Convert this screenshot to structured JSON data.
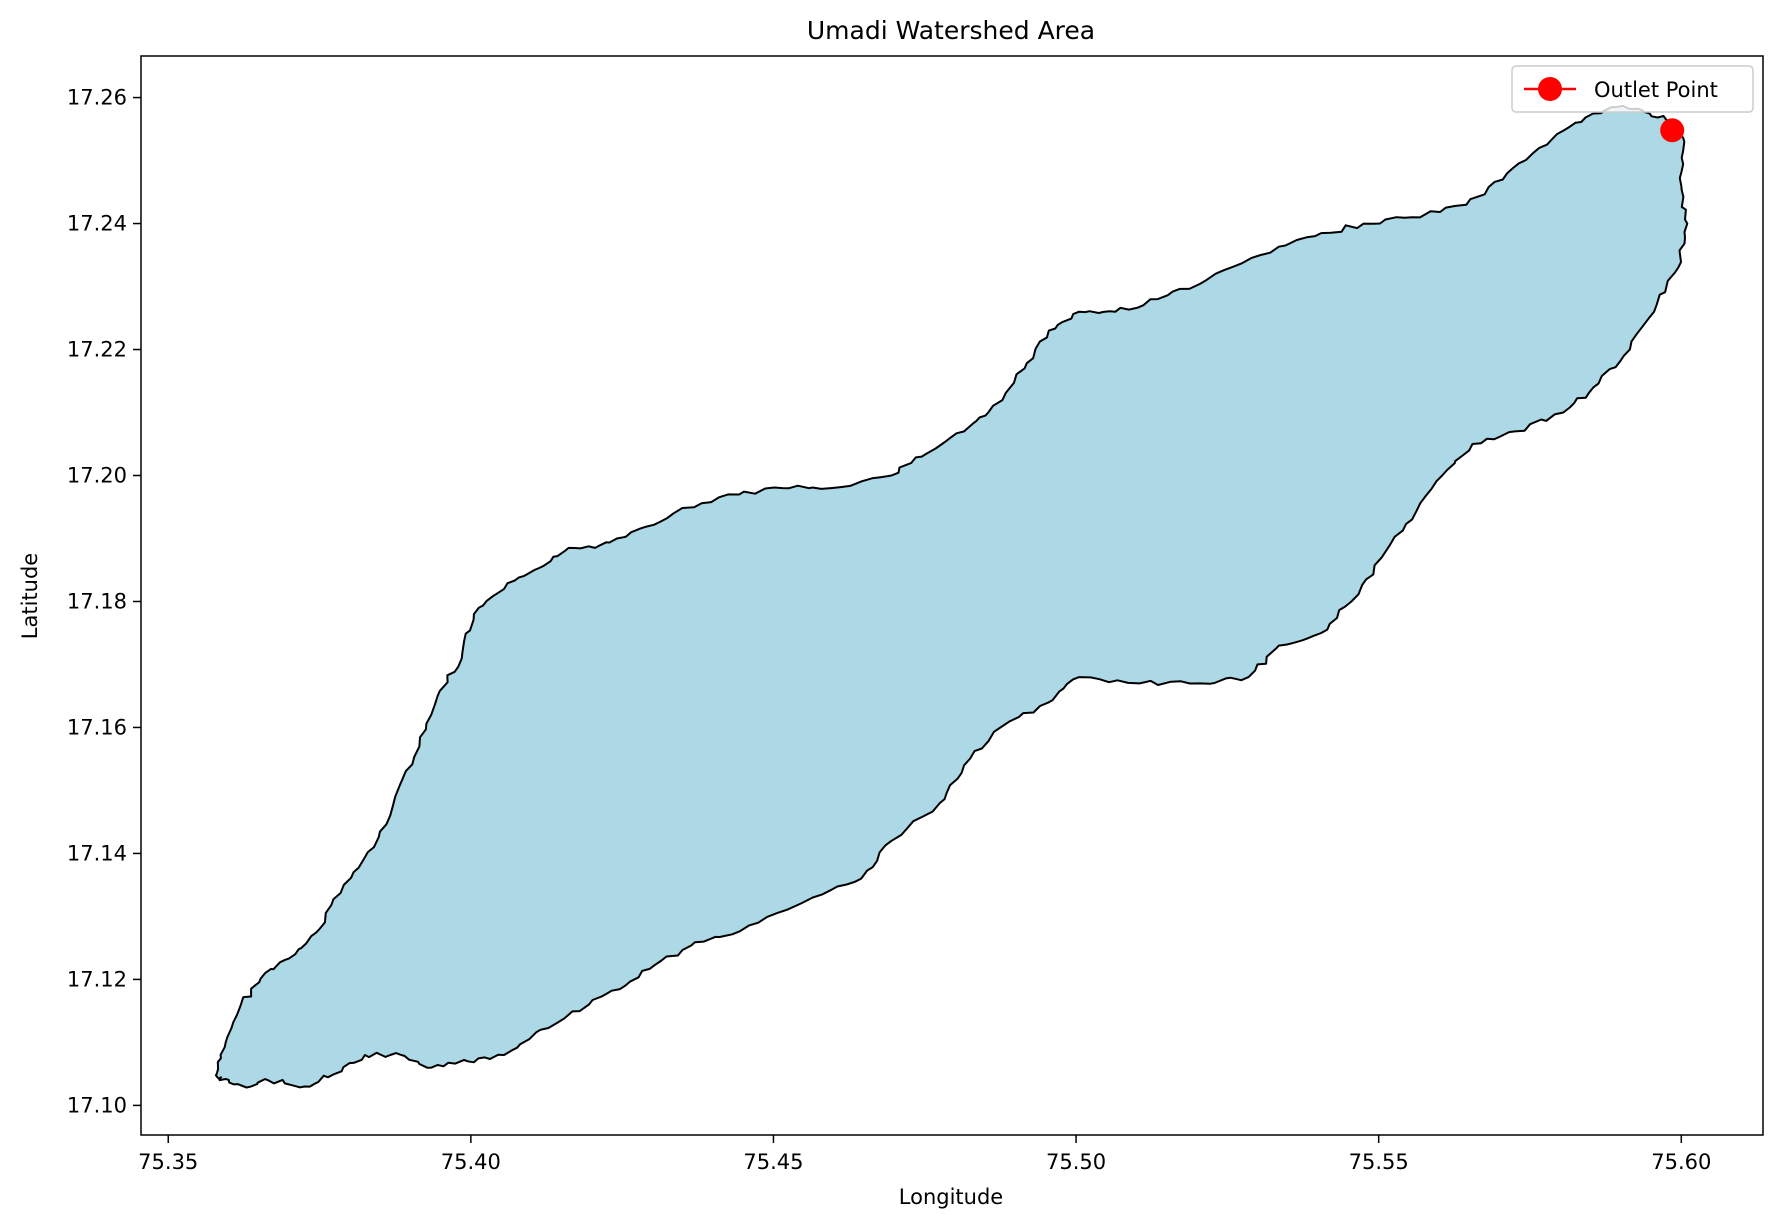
{
  "chart_data": {
    "type": "map",
    "title": "Umadi Watershed Area",
    "xlabel": "Longitude",
    "ylabel": "Latitude",
    "xlim": [
      75.3455,
      75.6135
    ],
    "ylim": [
      17.0953,
      17.2666
    ],
    "xticks": [
      75.35,
      75.4,
      75.45,
      75.5,
      75.55,
      75.6
    ],
    "xtick_labels": [
      "75.35",
      "75.40",
      "75.45",
      "75.50",
      "75.55",
      "75.60"
    ],
    "yticks": [
      17.1,
      17.12,
      17.14,
      17.16,
      17.18,
      17.2,
      17.22,
      17.24,
      17.26
    ],
    "ytick_labels": [
      "17.10",
      "17.12",
      "17.14",
      "17.16",
      "17.18",
      "17.20",
      "17.22",
      "17.24",
      "17.26"
    ],
    "grid": false,
    "legend_position": "upper-right",
    "watershed": {
      "fill_color": "#add8e6",
      "edge_color": "#000000",
      "boundary": [
        [
          75.358,
          17.105
        ],
        [
          75.3595,
          17.11
        ],
        [
          75.362,
          17.116
        ],
        [
          75.366,
          17.121
        ],
        [
          75.371,
          17.124
        ],
        [
          75.375,
          17.128
        ],
        [
          75.379,
          17.135
        ],
        [
          75.384,
          17.141
        ],
        [
          75.3875,
          17.149
        ],
        [
          75.3915,
          17.157
        ],
        [
          75.3945,
          17.165
        ],
        [
          75.3985,
          17.171
        ],
        [
          75.4005,
          17.178
        ],
        [
          75.4055,
          17.182
        ],
        [
          75.4105,
          17.185
        ],
        [
          75.4155,
          17.188
        ],
        [
          75.4215,
          17.189
        ],
        [
          75.4265,
          17.191
        ],
        [
          75.4335,
          17.194
        ],
        [
          75.4425,
          17.197
        ],
        [
          75.4515,
          17.198
        ],
        [
          75.4595,
          17.198
        ],
        [
          75.4695,
          17.2
        ],
        [
          75.4745,
          17.203
        ],
        [
          75.4815,
          17.207
        ],
        [
          75.4855,
          17.21
        ],
        [
          75.4915,
          17.217
        ],
        [
          75.4955,
          17.223
        ],
        [
          75.5005,
          17.226
        ],
        [
          75.5065,
          17.226
        ],
        [
          75.5135,
          17.228
        ],
        [
          75.5215,
          17.231
        ],
        [
          75.5305,
          17.235
        ],
        [
          75.5395,
          17.238
        ],
        [
          75.5475,
          17.24
        ],
        [
          75.5555,
          17.241
        ],
        [
          75.5645,
          17.243
        ],
        [
          75.5705,
          17.247
        ],
        [
          75.5765,
          17.252
        ],
        [
          75.5825,
          17.256
        ],
        [
          75.5885,
          17.2585
        ],
        [
          75.5935,
          17.258
        ],
        [
          75.5975,
          17.2565
        ],
        [
          75.6005,
          17.253
        ],
        [
          75.6,
          17.246
        ],
        [
          75.601,
          17.24
        ],
        [
          75.5995,
          17.233
        ],
        [
          75.5955,
          17.226
        ],
        [
          75.5905,
          17.219
        ],
        [
          75.5855,
          17.214
        ],
        [
          75.5805,
          17.21
        ],
        [
          75.5725,
          17.207
        ],
        [
          75.5655,
          17.205
        ],
        [
          75.5605,
          17.2
        ],
        [
          75.5555,
          17.193
        ],
        [
          75.5505,
          17.187
        ],
        [
          75.5455,
          17.18
        ],
        [
          75.5405,
          17.175
        ],
        [
          75.5335,
          17.173
        ],
        [
          75.5285,
          17.168
        ],
        [
          75.5205,
          17.167
        ],
        [
          75.5105,
          17.167
        ],
        [
          75.5005,
          17.168
        ],
        [
          75.4955,
          17.164
        ],
        [
          75.4875,
          17.16
        ],
        [
          75.4815,
          17.154
        ],
        [
          75.4775,
          17.148
        ],
        [
          75.4695,
          17.142
        ],
        [
          75.4645,
          17.136
        ],
        [
          75.4565,
          17.133
        ],
        [
          75.4475,
          17.129
        ],
        [
          75.4385,
          17.126
        ],
        [
          75.4315,
          17.123
        ],
        [
          75.4255,
          17.119
        ],
        [
          75.4195,
          17.116
        ],
        [
          75.4115,
          17.112
        ],
        [
          75.4055,
          17.108
        ],
        [
          75.3995,
          17.107
        ],
        [
          75.3935,
          17.106
        ],
        [
          75.3885,
          17.108
        ],
        [
          75.3825,
          17.108
        ],
        [
          75.3775,
          17.105
        ],
        [
          75.3725,
          17.103
        ],
        [
          75.3665,
          17.104
        ],
        [
          75.3625,
          17.103
        ],
        [
          75.3585,
          17.104
        ]
      ]
    },
    "series": [
      {
        "name": "Outlet Point",
        "type": "marker",
        "color": "#ff0000",
        "x": [
          75.5985
        ],
        "y": [
          17.2548
        ]
      }
    ]
  }
}
